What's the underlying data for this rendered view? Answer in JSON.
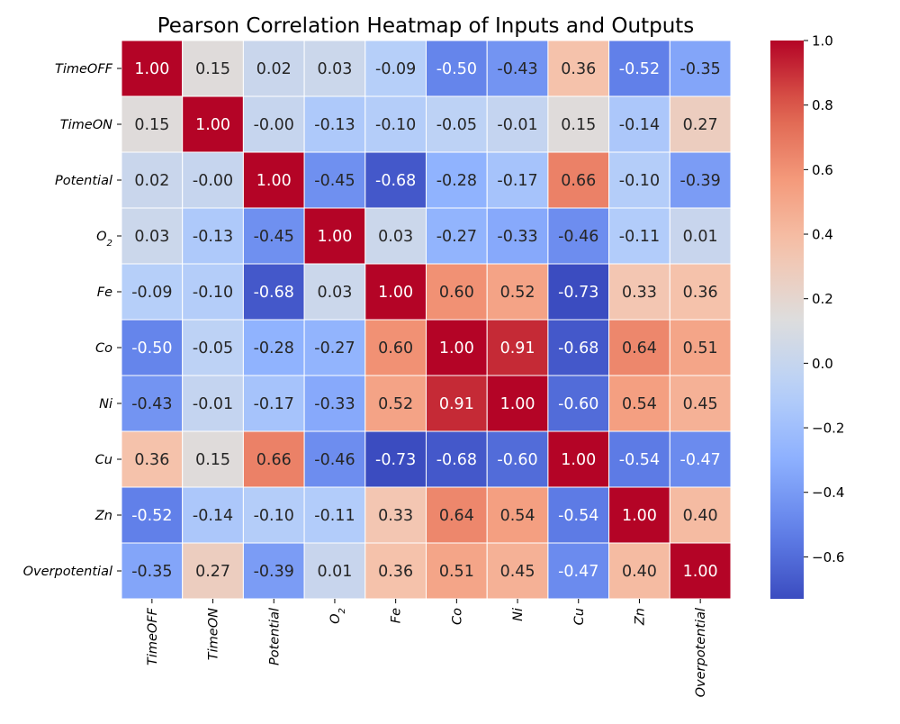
{
  "chart_data": {
    "type": "heatmap",
    "title": "Pearson Correlation Heatmap of Inputs and Outputs",
    "x_labels": [
      {
        "base": "TimeOFF",
        "sub": ""
      },
      {
        "base": "TimeON",
        "sub": ""
      },
      {
        "base": "Potential",
        "sub": ""
      },
      {
        "base": "O",
        "sub": "2"
      },
      {
        "base": "Fe",
        "sub": ""
      },
      {
        "base": "Co",
        "sub": ""
      },
      {
        "base": "Ni",
        "sub": ""
      },
      {
        "base": "Cu",
        "sub": ""
      },
      {
        "base": "Zn",
        "sub": ""
      },
      {
        "base": "Overpotential",
        "sub": ""
      }
    ],
    "y_labels": [
      {
        "base": "TimeOFF",
        "sub": ""
      },
      {
        "base": "TimeON",
        "sub": ""
      },
      {
        "base": "Potential",
        "sub": ""
      },
      {
        "base": "O",
        "sub": "2"
      },
      {
        "base": "Fe",
        "sub": ""
      },
      {
        "base": "Co",
        "sub": ""
      },
      {
        "base": "Ni",
        "sub": ""
      },
      {
        "base": "Cu",
        "sub": ""
      },
      {
        "base": "Zn",
        "sub": ""
      },
      {
        "base": "Overpotential",
        "sub": ""
      }
    ],
    "values": [
      [
        1.0,
        0.15,
        0.02,
        0.03,
        -0.09,
        -0.5,
        -0.43,
        0.36,
        -0.52,
        -0.35
      ],
      [
        0.15,
        1.0,
        -0.0,
        -0.13,
        -0.1,
        -0.05,
        -0.01,
        0.15,
        -0.14,
        0.27
      ],
      [
        0.02,
        -0.0,
        1.0,
        -0.45,
        -0.68,
        -0.28,
        -0.17,
        0.66,
        -0.1,
        -0.39
      ],
      [
        0.03,
        -0.13,
        -0.45,
        1.0,
        0.03,
        -0.27,
        -0.33,
        -0.46,
        -0.11,
        0.01
      ],
      [
        -0.09,
        -0.1,
        -0.68,
        0.03,
        1.0,
        0.6,
        0.52,
        -0.73,
        0.33,
        0.36
      ],
      [
        -0.5,
        -0.05,
        -0.28,
        -0.27,
        0.6,
        1.0,
        0.91,
        -0.68,
        0.64,
        0.51
      ],
      [
        -0.43,
        -0.01,
        -0.17,
        -0.33,
        0.52,
        0.91,
        1.0,
        -0.6,
        0.54,
        0.45
      ],
      [
        0.36,
        0.15,
        0.66,
        -0.46,
        -0.73,
        -0.68,
        -0.6,
        1.0,
        -0.54,
        -0.47
      ],
      [
        -0.52,
        -0.14,
        -0.1,
        -0.11,
        0.33,
        0.64,
        0.54,
        -0.54,
        1.0,
        0.4
      ],
      [
        -0.35,
        0.27,
        -0.39,
        0.01,
        0.36,
        0.51,
        0.45,
        -0.47,
        0.4,
        1.0
      ]
    ],
    "color_range": [
      -0.73,
      1.0
    ],
    "colormap": "coolwarm",
    "colorbar_ticks": [
      "−0.6",
      "−0.4",
      "−0.2",
      "0.0",
      "0.2",
      "0.4",
      "0.6",
      "0.8",
      "1.0"
    ],
    "colorbar_tick_values": [
      -0.6,
      -0.4,
      -0.2,
      0.0,
      0.2,
      0.4,
      0.6,
      0.8,
      1.0
    ],
    "legend": "colorbar-right",
    "grid": false
  }
}
